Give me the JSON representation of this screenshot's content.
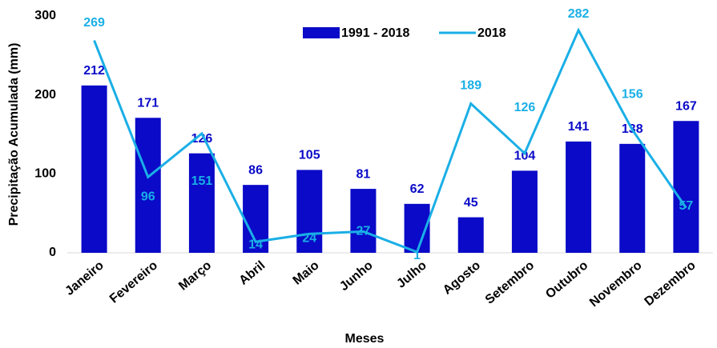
{
  "chart_data": {
    "type": "bar_line",
    "categories": [
      "Janeiro",
      "Fevereiro",
      "Março",
      "Abril",
      "Maio",
      "Junho",
      "Julho",
      "Agosto",
      "Setembro",
      "Outubro",
      "Novembro",
      "Dezembro"
    ],
    "series": [
      {
        "name": "1991 - 2018",
        "type": "bar",
        "color": "#0a0ac8",
        "values": [
          212,
          171,
          126,
          86,
          105,
          81,
          62,
          45,
          104,
          141,
          138,
          167
        ]
      },
      {
        "name": "2018",
        "type": "line",
        "color": "#1aafe6",
        "values": [
          269,
          96,
          151,
          14,
          24,
          27,
          1,
          189,
          126,
          282,
          156,
          57
        ]
      }
    ],
    "ylim": [
      0,
      300
    ],
    "yticks": [
      0,
      100,
      200,
      300
    ],
    "ylabel": "Precipitação Acumulada (mm)",
    "xlabel": "Meses",
    "legend": "top"
  }
}
